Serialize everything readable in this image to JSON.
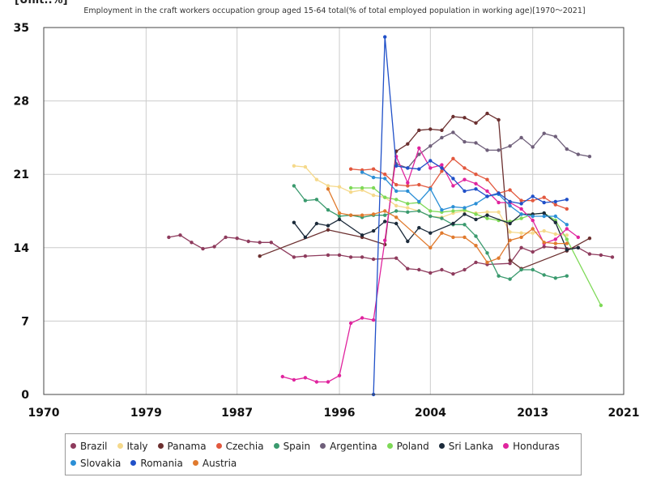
{
  "unit_label": "[Unit:.%]",
  "chart_data": {
    "type": "line",
    "title": "Employment in the craft workers occupation group aged 15-64 total(% of total employed population in working age)[1970～2021]",
    "xlabel": "",
    "ylabel": "",
    "xlim": [
      1970,
      2021
    ],
    "ylim": [
      0,
      35
    ],
    "x_ticks": [
      1970,
      1979,
      1987,
      1996,
      2004,
      2013,
      2021
    ],
    "y_ticks": [
      0,
      7,
      14,
      21,
      28,
      35
    ],
    "grid": true,
    "legend_position": "bottom",
    "series": [
      {
        "name": "Brazil",
        "color": "#8e3b5d",
        "points": [
          [
            1981,
            15.0
          ],
          [
            1982,
            15.2
          ],
          [
            1983,
            14.5
          ],
          [
            1984,
            13.9
          ],
          [
            1985,
            14.1
          ],
          [
            1986,
            15.0
          ],
          [
            1987,
            14.9
          ],
          [
            1988,
            14.6
          ],
          [
            1989,
            14.5
          ],
          [
            1990,
            14.5
          ],
          [
            1992,
            13.1
          ],
          [
            1993,
            13.2
          ],
          [
            1995,
            13.3
          ],
          [
            1996,
            13.3
          ],
          [
            1997,
            13.1
          ],
          [
            1998,
            13.1
          ],
          [
            1999,
            12.9
          ],
          [
            2001,
            13.0
          ],
          [
            2002,
            12.0
          ],
          [
            2003,
            11.9
          ],
          [
            2004,
            11.6
          ],
          [
            2005,
            11.9
          ],
          [
            2006,
            11.5
          ],
          [
            2007,
            11.9
          ],
          [
            2008,
            12.6
          ],
          [
            2009,
            12.4
          ],
          [
            2011,
            12.5
          ],
          [
            2012,
            14.0
          ],
          [
            2013,
            13.6
          ],
          [
            2014,
            14.1
          ],
          [
            2015,
            14.0
          ],
          [
            2016,
            13.9
          ],
          [
            2017,
            14.0
          ],
          [
            2018,
            13.4
          ],
          [
            2019,
            13.3
          ],
          [
            2020,
            13.1
          ]
        ]
      },
      {
        "name": "Italy",
        "color": "#f5d98b",
        "points": [
          [
            1992,
            21.8
          ],
          [
            1993,
            21.7
          ],
          [
            1994,
            20.5
          ],
          [
            1995,
            19.9
          ],
          [
            1996,
            19.8
          ],
          [
            1997,
            19.3
          ],
          [
            1998,
            19.5
          ],
          [
            1999,
            19.0
          ],
          [
            2000,
            18.8
          ],
          [
            2001,
            18.0
          ],
          [
            2002,
            17.8
          ],
          [
            2003,
            17.5
          ],
          [
            2004,
            17.0
          ],
          [
            2005,
            16.9
          ],
          [
            2006,
            17.3
          ],
          [
            2007,
            17.5
          ],
          [
            2008,
            17.3
          ],
          [
            2009,
            17.4
          ],
          [
            2010,
            17.4
          ],
          [
            2011,
            15.5
          ],
          [
            2012,
            15.4
          ],
          [
            2013,
            15.4
          ],
          [
            2014,
            15.6
          ],
          [
            2015,
            15.3
          ],
          [
            2016,
            15.2
          ]
        ]
      },
      {
        "name": "Panama",
        "color": "#6b2f2f",
        "points": [
          [
            1989,
            13.2
          ],
          [
            1995,
            15.7
          ],
          [
            1998,
            15.0
          ],
          [
            2000,
            14.3
          ],
          [
            2001,
            23.2
          ],
          [
            2002,
            23.9
          ],
          [
            2003,
            25.2
          ],
          [
            2004,
            25.3
          ],
          [
            2005,
            25.2
          ],
          [
            2006,
            26.5
          ],
          [
            2007,
            26.4
          ],
          [
            2008,
            25.9
          ],
          [
            2009,
            26.8
          ],
          [
            2010,
            26.2
          ],
          [
            2011,
            12.8
          ],
          [
            2012,
            12.0
          ],
          [
            2016,
            13.7
          ],
          [
            2018,
            14.9
          ]
        ]
      },
      {
        "name": "Czechia",
        "color": "#e2583e",
        "points": [
          [
            1997,
            21.5
          ],
          [
            1998,
            21.4
          ],
          [
            1999,
            21.5
          ],
          [
            2000,
            21.0
          ],
          [
            2001,
            20.0
          ],
          [
            2002,
            19.9
          ],
          [
            2003,
            20.0
          ],
          [
            2004,
            19.7
          ],
          [
            2005,
            21.3
          ],
          [
            2006,
            22.5
          ],
          [
            2007,
            21.6
          ],
          [
            2008,
            21.0
          ],
          [
            2009,
            20.5
          ],
          [
            2010,
            19.2
          ],
          [
            2011,
            19.5
          ],
          [
            2012,
            18.5
          ],
          [
            2013,
            18.5
          ],
          [
            2014,
            18.8
          ],
          [
            2015,
            18.1
          ],
          [
            2016,
            17.7
          ]
        ]
      },
      {
        "name": "Spain",
        "color": "#3a9a6e",
        "points": [
          [
            1992,
            19.9
          ],
          [
            1993,
            18.5
          ],
          [
            1994,
            18.6
          ],
          [
            1995,
            17.6
          ],
          [
            1996,
            17.0
          ],
          [
            1997,
            17.1
          ],
          [
            1998,
            16.9
          ],
          [
            1999,
            17.1
          ],
          [
            2000,
            17.1
          ],
          [
            2001,
            17.5
          ],
          [
            2002,
            17.4
          ],
          [
            2003,
            17.5
          ],
          [
            2004,
            17.0
          ],
          [
            2005,
            16.8
          ],
          [
            2006,
            16.2
          ],
          [
            2007,
            16.2
          ],
          [
            2008,
            15.1
          ],
          [
            2009,
            13.5
          ],
          [
            2010,
            11.3
          ],
          [
            2011,
            11.0
          ],
          [
            2012,
            11.9
          ],
          [
            2013,
            11.9
          ],
          [
            2014,
            11.4
          ],
          [
            2015,
            11.1
          ],
          [
            2016,
            11.3
          ]
        ]
      },
      {
        "name": "Argentina",
        "color": "#6f5f7a",
        "points": [
          [
            2001,
            22.0
          ],
          [
            2002,
            21.6
          ],
          [
            2003,
            22.9
          ],
          [
            2004,
            23.7
          ],
          [
            2005,
            24.5
          ],
          [
            2006,
            25.0
          ],
          [
            2007,
            24.1
          ],
          [
            2008,
            24.0
          ],
          [
            2009,
            23.3
          ],
          [
            2010,
            23.3
          ],
          [
            2011,
            23.7
          ],
          [
            2012,
            24.5
          ],
          [
            2013,
            23.6
          ],
          [
            2014,
            24.9
          ],
          [
            2015,
            24.6
          ],
          [
            2016,
            23.4
          ],
          [
            2017,
            22.9
          ],
          [
            2018,
            22.7
          ]
        ]
      },
      {
        "name": "Poland",
        "color": "#7ed957",
        "points": [
          [
            1997,
            19.7
          ],
          [
            1998,
            19.7
          ],
          [
            1999,
            19.7
          ],
          [
            2000,
            18.8
          ],
          [
            2001,
            18.6
          ],
          [
            2002,
            18.2
          ],
          [
            2003,
            18.3
          ],
          [
            2004,
            17.5
          ],
          [
            2005,
            17.4
          ],
          [
            2006,
            17.5
          ],
          [
            2007,
            17.6
          ],
          [
            2008,
            17.2
          ],
          [
            2009,
            16.8
          ],
          [
            2010,
            16.6
          ],
          [
            2011,
            16.5
          ],
          [
            2012,
            16.8
          ],
          [
            2013,
            17.2
          ],
          [
            2014,
            17.3
          ],
          [
            2015,
            16.6
          ],
          [
            2016,
            14.8
          ],
          [
            2019,
            8.5
          ]
        ]
      },
      {
        "name": "Sri Lanka",
        "color": "#1b2a3a",
        "points": [
          [
            1992,
            16.4
          ],
          [
            1993,
            15.0
          ],
          [
            1994,
            16.3
          ],
          [
            1995,
            16.1
          ],
          [
            1996,
            16.7
          ],
          [
            1998,
            15.2
          ],
          [
            1999,
            15.6
          ],
          [
            2000,
            16.5
          ],
          [
            2001,
            16.3
          ],
          [
            2002,
            14.6
          ],
          [
            2003,
            15.9
          ],
          [
            2004,
            15.4
          ],
          [
            2006,
            16.3
          ],
          [
            2007,
            17.2
          ],
          [
            2008,
            16.7
          ],
          [
            2009,
            17.1
          ],
          [
            2011,
            16.3
          ],
          [
            2012,
            17.2
          ],
          [
            2013,
            17.2
          ],
          [
            2014,
            17.3
          ],
          [
            2015,
            16.4
          ],
          [
            2016,
            13.8
          ],
          [
            2017,
            14.0
          ]
        ]
      },
      {
        "name": "Honduras",
        "color": "#e0249e",
        "points": [
          [
            1991,
            1.7
          ],
          [
            1992,
            1.4
          ],
          [
            1993,
            1.6
          ],
          [
            1994,
            1.2
          ],
          [
            1995,
            1.2
          ],
          [
            1996,
            1.8
          ],
          [
            1997,
            6.8
          ],
          [
            1998,
            7.3
          ],
          [
            1999,
            7.1
          ],
          [
            2000,
            14.7
          ],
          [
            2001,
            22.7
          ],
          [
            2002,
            20.2
          ],
          [
            2003,
            23.5
          ],
          [
            2004,
            21.6
          ],
          [
            2005,
            21.9
          ],
          [
            2006,
            19.9
          ],
          [
            2007,
            20.5
          ],
          [
            2008,
            20.1
          ],
          [
            2009,
            19.4
          ],
          [
            2010,
            18.3
          ],
          [
            2011,
            18.3
          ],
          [
            2012,
            17.7
          ],
          [
            2013,
            16.6
          ],
          [
            2014,
            14.4
          ],
          [
            2015,
            14.8
          ],
          [
            2016,
            15.8
          ],
          [
            2017,
            15.0
          ]
        ]
      },
      {
        "name": "Slovakia",
        "color": "#2b8fd6",
        "points": [
          [
            1998,
            21.2
          ],
          [
            1999,
            20.7
          ],
          [
            2000,
            20.6
          ],
          [
            2001,
            19.4
          ],
          [
            2002,
            19.4
          ],
          [
            2003,
            18.4
          ],
          [
            2004,
            19.6
          ],
          [
            2005,
            17.6
          ],
          [
            2006,
            17.9
          ],
          [
            2007,
            17.8
          ],
          [
            2008,
            18.2
          ],
          [
            2009,
            18.9
          ],
          [
            2010,
            19.1
          ],
          [
            2011,
            18.0
          ],
          [
            2012,
            17.2
          ],
          [
            2013,
            17.0
          ],
          [
            2014,
            17.0
          ],
          [
            2015,
            17.0
          ],
          [
            2016,
            16.2
          ]
        ]
      },
      {
        "name": "Romania",
        "color": "#2050c8",
        "points": [
          [
            1999,
            0.0
          ],
          [
            2000,
            34.1
          ],
          [
            2001,
            21.8
          ],
          [
            2002,
            21.6
          ],
          [
            2003,
            21.5
          ],
          [
            2004,
            22.3
          ],
          [
            2005,
            21.6
          ],
          [
            2006,
            20.6
          ],
          [
            2007,
            19.4
          ],
          [
            2008,
            19.6
          ],
          [
            2009,
            18.9
          ],
          [
            2010,
            19.2
          ],
          [
            2011,
            18.4
          ],
          [
            2012,
            18.2
          ],
          [
            2013,
            18.9
          ],
          [
            2014,
            18.3
          ],
          [
            2015,
            18.4
          ],
          [
            2016,
            18.6
          ]
        ]
      },
      {
        "name": "Austria",
        "color": "#e07a2e",
        "points": [
          [
            1995,
            19.6
          ],
          [
            1996,
            17.3
          ],
          [
            1997,
            17.1
          ],
          [
            1998,
            17.1
          ],
          [
            1999,
            17.2
          ],
          [
            2000,
            17.5
          ],
          [
            2001,
            16.9
          ],
          [
            2004,
            14.0
          ],
          [
            2005,
            15.4
          ],
          [
            2006,
            15.0
          ],
          [
            2007,
            15.0
          ],
          [
            2008,
            14.2
          ],
          [
            2009,
            12.6
          ],
          [
            2010,
            13.0
          ],
          [
            2011,
            14.7
          ],
          [
            2012,
            15.0
          ],
          [
            2013,
            15.8
          ],
          [
            2014,
            14.5
          ],
          [
            2015,
            14.4
          ],
          [
            2016,
            14.4
          ]
        ]
      }
    ]
  }
}
